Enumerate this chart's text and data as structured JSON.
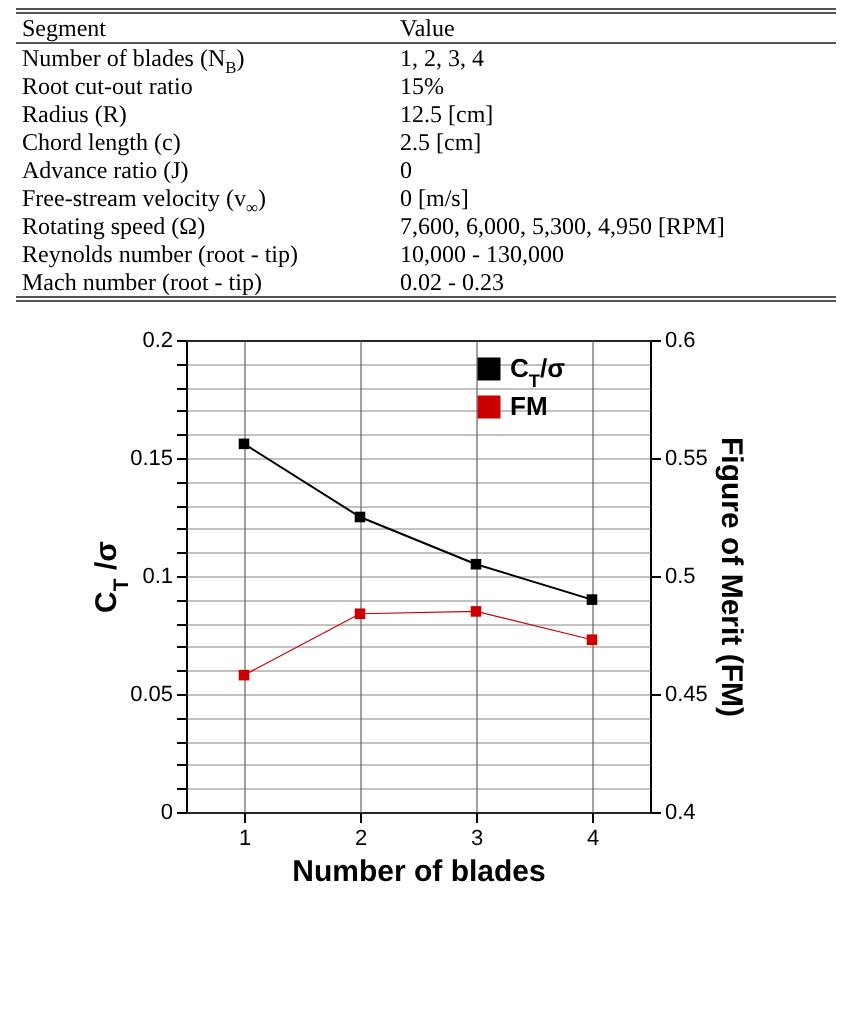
{
  "chart_data": [
    {
      "type": "other",
      "annotations": [
        "Segment",
        "Value",
        "Number of blades (N$_{B}$)",
        "1, 2, 3, 4",
        "Root cut-out ratio",
        "15%",
        "Radius (R)",
        "12.5 [cm]",
        "Chord length (c)",
        "2.5 [cm]",
        "Advance ratio (J)",
        "0",
        "Free-stream velocity (v$_{∞}$)",
        "0 [m/s]",
        "Rotating speed (Ω)",
        "7,600, 6,000, 5,300, 4,950 [RPM]",
        "Reynolds number (root - tip)",
        "10,000 - 130,000",
        "Mach number (root - tip)",
        "0.02 - 0.23"
      ]
    },
    {
      "type": "line",
      "x": [
        1,
        2,
        3,
        4
      ],
      "xlabel": "Number of blades",
      "ylabel": "C$_{T}$ /σ",
      "y2label": "Figure of Merit (FM)",
      "series": [
        {
          "name": "C$_{T}$/σ",
          "color": "#000000",
          "values": [
            0.156,
            0.125,
            0.105,
            0.09
          ]
        },
        {
          "name": "FM",
          "color": "#cc0000",
          "axis": "y2",
          "values": [
            0.458,
            0.484,
            0.485,
            0.473
          ]
        }
      ],
      "xlim": [
        0.5,
        4.5
      ],
      "xticks": [
        1,
        2,
        3,
        4
      ],
      "ylim": [
        0,
        0.2
      ],
      "yticks": [
        0,
        {
          "value": 0.01,
          "label": null
        },
        {
          "value": 0.02,
          "label": null
        },
        {
          "value": 0.03,
          "label": null
        },
        {
          "value": 0.04,
          "label": null
        },
        0.05,
        {
          "value": 0.06,
          "label": null
        },
        {
          "value": 0.07,
          "label": null
        },
        {
          "value": 0.08,
          "label": null
        },
        {
          "value": 0.09,
          "label": null
        },
        0.1,
        {
          "value": 0.11,
          "label": null
        },
        {
          "value": 0.12,
          "label": null
        },
        {
          "value": 0.13,
          "label": null
        },
        {
          "value": 0.14,
          "label": null
        },
        0.15,
        {
          "value": 0.16,
          "label": null
        },
        {
          "value": 0.17,
          "label": null
        },
        {
          "value": 0.18,
          "label": null
        },
        {
          "value": 0.19,
          "label": null
        },
        0.2
      ],
      "y2lim": [
        0.4,
        0.6
      ],
      "y2ticks": [
        0.4,
        0.45,
        0.5,
        0.55,
        0.6
      ],
      "grid": true,
      "legend": "top right",
      "marker": "square",
      "line_style": "solid"
    }
  ]
}
